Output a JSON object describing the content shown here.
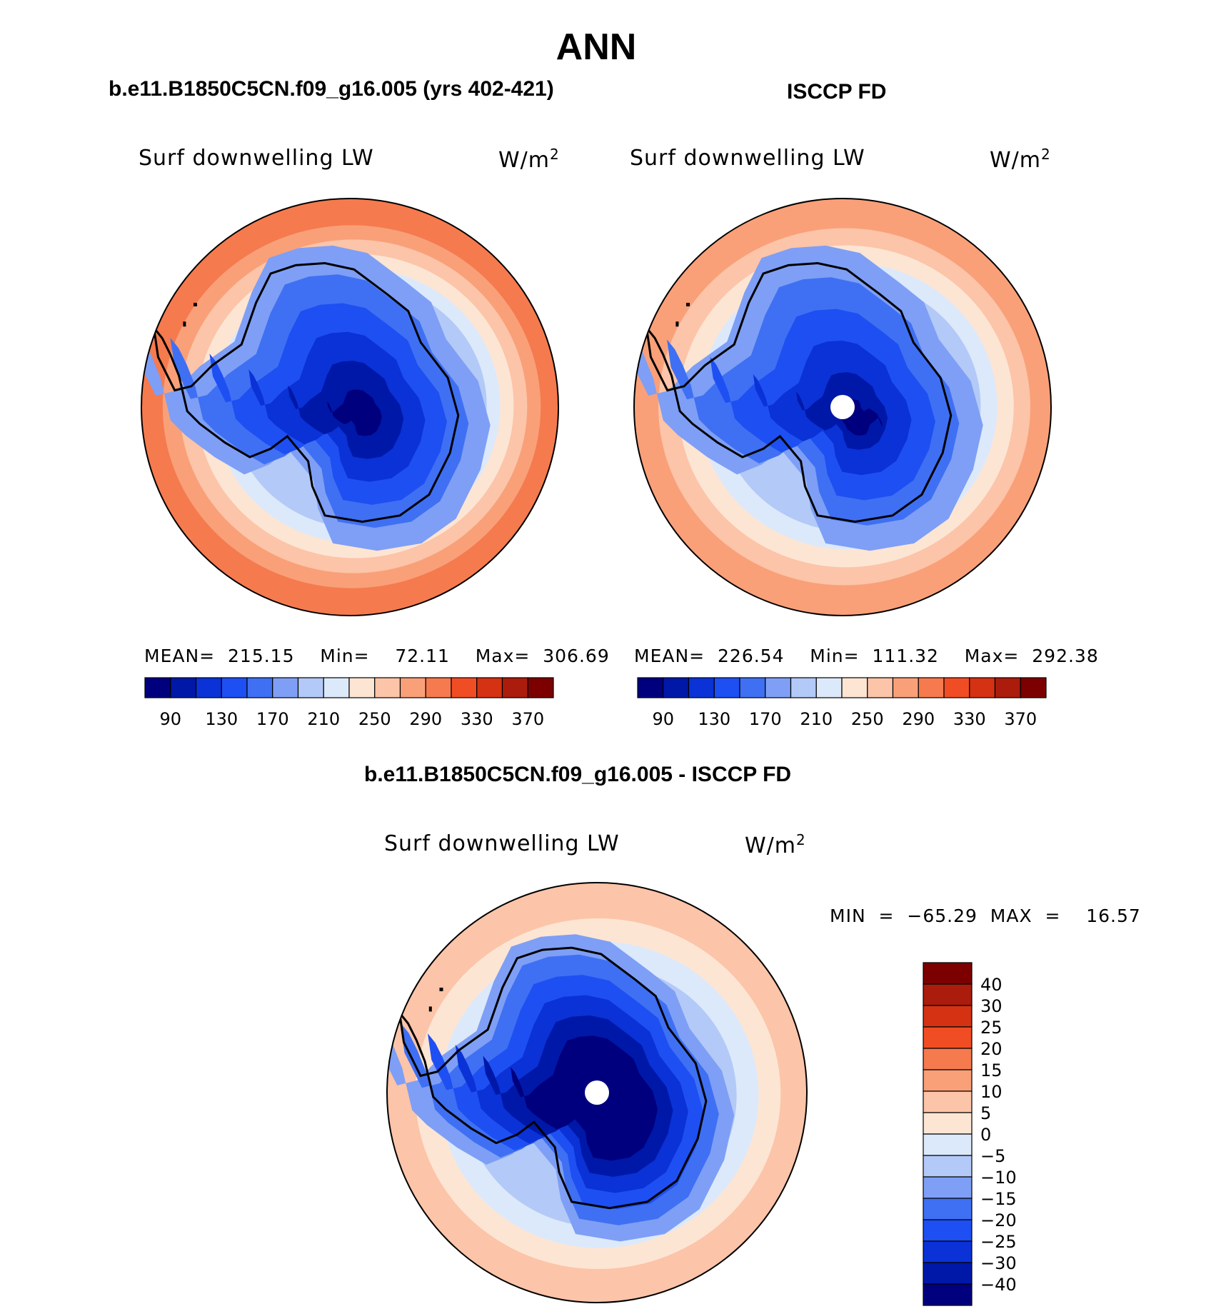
{
  "page_title": "ANN",
  "panels": [
    {
      "heading": "b.e11.B1850C5CN.f09_g16.005 (yrs 402-421)",
      "variable": "Surf downwelling LW",
      "units_base": "W/m",
      "units_sup": "2",
      "stats": {
        "mean": "215.15",
        "min": "72.11",
        "max": "306.69"
      },
      "stats_text": "MEAN=  215.15    Min=    72.11    Max=  306.69"
    },
    {
      "heading": "ISCCP FD",
      "variable": "Surf downwelling LW",
      "units_base": "W/m",
      "units_sup": "2",
      "stats": {
        "mean": "226.54",
        "min": "111.32",
        "max": "292.38"
      },
      "stats_text": "MEAN=  226.54    Min=  111.32    Max=  292.38"
    },
    {
      "heading": "b.e11.B1850C5CN.f09_g16.005 - ISCCP FD",
      "variable": "Surf downwelling LW",
      "units_base": "W/m",
      "units_sup": "2",
      "stats": {
        "min": "-65.29",
        "max": "16.57"
      },
      "stats_text": "MIN  =  −65.29  MAX  =    16.57"
    }
  ],
  "colorbar_abs": {
    "colors": [
      "#00007e",
      "#0018a8",
      "#0a32d6",
      "#1e4ff2",
      "#3f70f3",
      "#7e9ff5",
      "#b3c9f7",
      "#dce9fb",
      "#fde5d4",
      "#fcc4a8",
      "#f9a079",
      "#f57a4e",
      "#f14d24",
      "#d43212",
      "#ab1c0c",
      "#7c0000"
    ],
    "labels": [
      "90",
      "130",
      "170",
      "210",
      "250",
      "290",
      "330",
      "370"
    ]
  },
  "colorbar_diff": {
    "colors": [
      "#7c0000",
      "#ab1c0c",
      "#d43212",
      "#f14d24",
      "#f57a4e",
      "#f9a079",
      "#fcc4a8",
      "#fde5d4",
      "#dce9fb",
      "#b3c9f7",
      "#7e9ff5",
      "#3f70f3",
      "#1e4ff2",
      "#0a32d6",
      "#0018a8",
      "#00007e"
    ],
    "labels": [
      "40",
      "30",
      "25",
      "20",
      "15",
      "10",
      "5",
      "0",
      "−5",
      "−10",
      "−15",
      "−20",
      "−25",
      "−30",
      "−40"
    ]
  },
  "map_fills": {
    "abs": [
      "#f57a4e",
      "#f9a079",
      "#fcc4a8",
      "#fde5d4",
      "#dce9fb",
      "#b3c9f7",
      "#7e9ff5",
      "#3f70f3",
      "#1e4ff2",
      "#0a32d6",
      "#0018a8",
      "#00007e"
    ],
    "diff": [
      "#fcc4a8",
      "#fde5d4",
      "#dce9fb",
      "#b3c9f7",
      "#7e9ff5",
      "#3f70f3",
      "#1e4ff2",
      "#0a32d6",
      "#0018a8",
      "#00007e"
    ],
    "pole_hole": "#ffffff",
    "coast": "#000000"
  }
}
